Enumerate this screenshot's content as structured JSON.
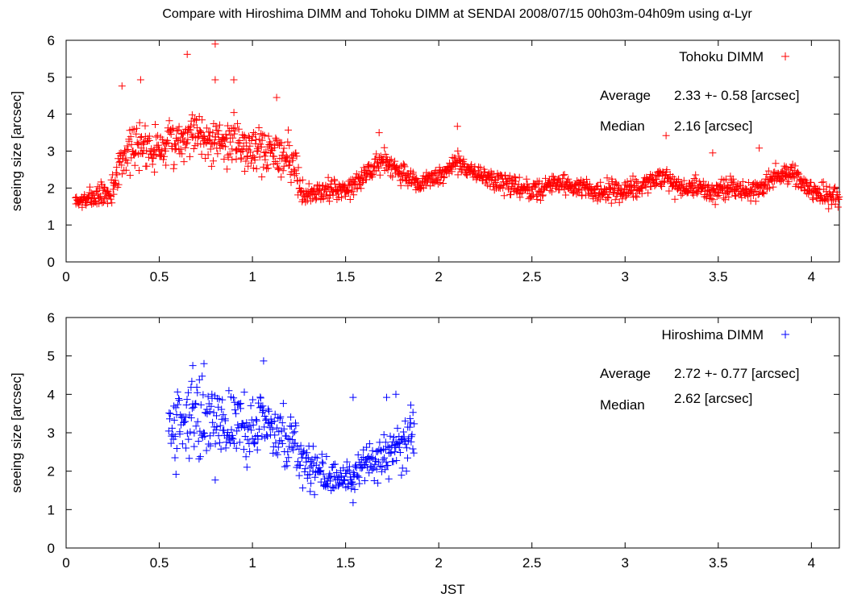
{
  "title": "Compare with Hiroshima DIMM and Tohoku DIMM at SENDAI 2008/07/15 00h03m-04h09m using α-Lyr",
  "chart_data": [
    {
      "type": "scatter",
      "xlabel": "",
      "ylabel": "seeing size [arcsec]",
      "xlim": [
        0,
        4.15
      ],
      "ylim": [
        0,
        6
      ],
      "xticks": [
        "0",
        "0.5",
        "1",
        "1.5",
        "2",
        "2.5",
        "3",
        "3.5",
        "4"
      ],
      "yticks": [
        "0",
        "1",
        "2",
        "3",
        "4",
        "5",
        "6"
      ],
      "series": [
        {
          "name": "Tohoku DIMM",
          "color": "#ff0000",
          "marker": "+",
          "x_range": [
            0.05,
            4.15
          ],
          "trend": [
            [
              0.05,
              1.6
            ],
            [
              0.15,
              1.75
            ],
            [
              0.25,
              1.9
            ],
            [
              0.3,
              2.9
            ],
            [
              0.4,
              3.2
            ],
            [
              0.5,
              3.1
            ],
            [
              0.6,
              3.3
            ],
            [
              0.7,
              3.6
            ],
            [
              0.8,
              3.2
            ],
            [
              0.9,
              3.3
            ],
            [
              1.0,
              3.1
            ],
            [
              1.1,
              3.0
            ],
            [
              1.2,
              2.9
            ],
            [
              1.27,
              1.8
            ],
            [
              1.35,
              1.9
            ],
            [
              1.5,
              2.0
            ],
            [
              1.6,
              2.3
            ],
            [
              1.7,
              2.8
            ],
            [
              1.8,
              2.4
            ],
            [
              1.9,
              2.1
            ],
            [
              2.0,
              2.3
            ],
            [
              2.1,
              2.7
            ],
            [
              2.2,
              2.4
            ],
            [
              2.35,
              2.1
            ],
            [
              2.5,
              1.9
            ],
            [
              2.6,
              2.1
            ],
            [
              2.75,
              2.0
            ],
            [
              2.9,
              1.9
            ],
            [
              3.0,
              1.9
            ],
            [
              3.1,
              2.1
            ],
            [
              3.2,
              2.3
            ],
            [
              3.3,
              2.0
            ],
            [
              3.4,
              2.0
            ],
            [
              3.5,
              1.9
            ],
            [
              3.6,
              2.0
            ],
            [
              3.7,
              1.9
            ],
            [
              3.8,
              2.3
            ],
            [
              3.9,
              2.4
            ],
            [
              4.0,
              1.9
            ],
            [
              4.15,
              1.7
            ]
          ],
          "spread": [
            [
              0.05,
              0.1
            ],
            [
              0.3,
              0.4
            ],
            [
              1.25,
              0.45
            ],
            [
              1.3,
              0.2
            ],
            [
              4.15,
              0.2
            ]
          ],
          "outliers": [
            [
              0.65,
              5.62
            ],
            [
              0.8,
              5.9
            ],
            [
              0.8,
              4.93
            ],
            [
              0.4,
              4.93
            ],
            [
              0.3,
              4.76
            ],
            [
              0.9,
              4.93
            ],
            [
              1.13,
              4.45
            ],
            [
              2.1,
              3.67
            ],
            [
              3.22,
              3.42
            ],
            [
              1.68,
              3.5
            ],
            [
              3.47,
              2.95
            ],
            [
              3.72,
              3.08
            ]
          ],
          "density": 1600
        }
      ],
      "annotations": {
        "average_label": "Average",
        "average_value": "2.33 +- 0.58 [arcsec]",
        "median_label": "Median",
        "median_value": "2.16 [arcsec]"
      }
    },
    {
      "type": "scatter",
      "xlabel": "JST",
      "ylabel": "seeing size [arcsec]",
      "xlim": [
        0,
        4.15
      ],
      "ylim": [
        0,
        6
      ],
      "xticks": [
        "0",
        "0.5",
        "1",
        "1.5",
        "2",
        "2.5",
        "3",
        "3.5",
        "4"
      ],
      "yticks": [
        "0",
        "1",
        "2",
        "3",
        "4",
        "5",
        "6"
      ],
      "series": [
        {
          "name": "Hiroshima DIMM",
          "color": "#0000ff",
          "marker": "+",
          "x_range": [
            0.55,
            1.87
          ],
          "trend": [
            [
              0.55,
              3.2
            ],
            [
              0.65,
              3.4
            ],
            [
              0.75,
              3.5
            ],
            [
              0.85,
              3.3
            ],
            [
              0.95,
              3.2
            ],
            [
              1.05,
              3.1
            ],
            [
              1.15,
              2.9
            ],
            [
              1.25,
              2.4
            ],
            [
              1.35,
              2.0
            ],
            [
              1.45,
              1.85
            ],
            [
              1.55,
              1.9
            ],
            [
              1.65,
              2.2
            ],
            [
              1.75,
              2.6
            ],
            [
              1.87,
              2.9
            ]
          ],
          "spread": [
            [
              0.55,
              0.65
            ],
            [
              1.2,
              0.6
            ],
            [
              1.35,
              0.3
            ],
            [
              1.6,
              0.3
            ],
            [
              1.87,
              0.55
            ]
          ],
          "outliers": [
            [
              1.06,
              4.87
            ],
            [
              0.74,
              4.8
            ],
            [
              0.68,
              4.75
            ],
            [
              1.54,
              3.92
            ],
            [
              1.77,
              4.0
            ],
            [
              1.72,
              3.92
            ],
            [
              1.85,
              3.72
            ],
            [
              0.8,
              1.77
            ],
            [
              0.59,
              1.92
            ],
            [
              1.54,
              1.18
            ],
            [
              1.31,
              1.47
            ]
          ],
          "density": 460
        }
      ],
      "annotations": {
        "average_label": "Average",
        "average_value": "2.72 +- 0.77 [arcsec]",
        "median_label": "Median",
        "median_value": "2.62 [arcsec]"
      }
    }
  ]
}
